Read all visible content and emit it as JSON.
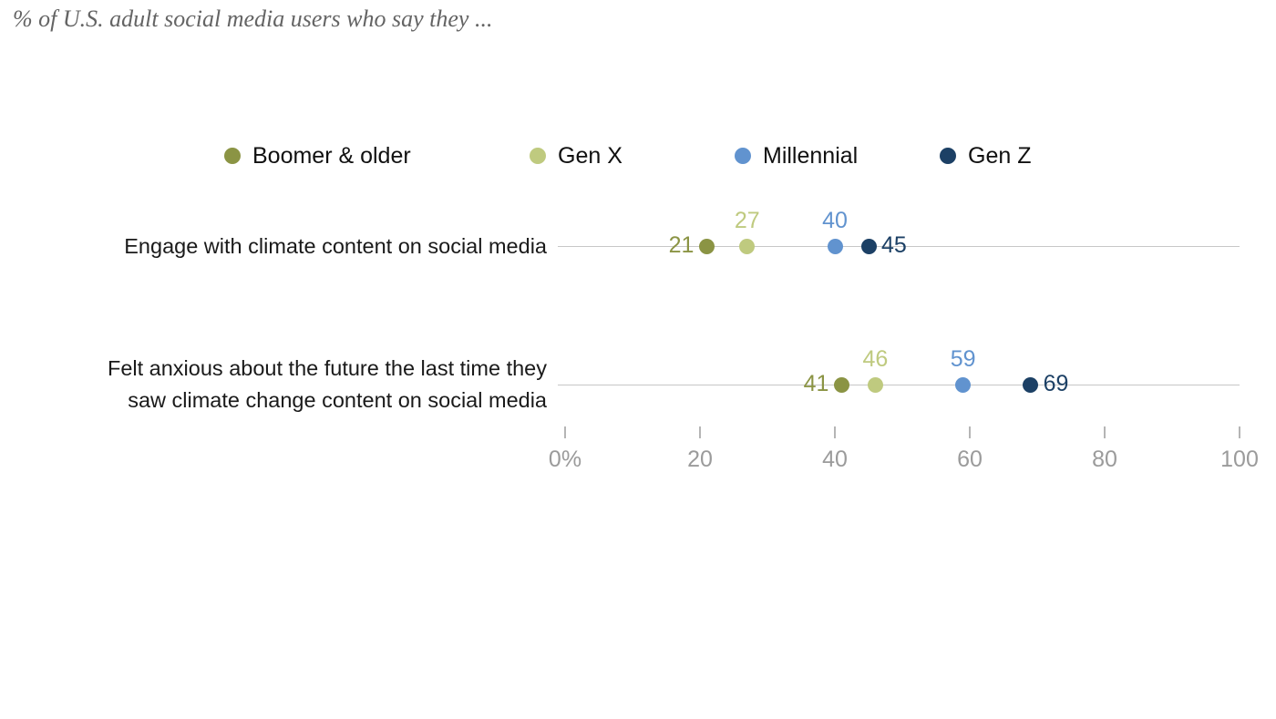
{
  "title": "% of U.S. adult social media users who say they ...",
  "chart_data": {
    "type": "scatter",
    "subtype": "dot-plot",
    "legend_position": "top",
    "grid": false,
    "categories": [
      {
        "lines": [
          "Engage with climate content on social media"
        ]
      },
      {
        "lines": [
          "Felt anxious about the future the last time they",
          "saw climate change content on social media"
        ]
      }
    ],
    "series": [
      {
        "name": "Boomer & older",
        "color": "#8b9444",
        "values": [
          21,
          41
        ],
        "label_position": "left"
      },
      {
        "name": "Gen X",
        "color": "#bfca7f",
        "values": [
          27,
          46
        ],
        "label_position": "above"
      },
      {
        "name": "Millennial",
        "color": "#6193cf",
        "values": [
          40,
          59
        ],
        "label_position": "above"
      },
      {
        "name": "Gen Z",
        "color": "#1c4065",
        "values": [
          45,
          69
        ],
        "label_position": "right"
      }
    ],
    "x_axis": {
      "range": [
        0,
        100
      ],
      "ticks": [
        0,
        20,
        40,
        60,
        80,
        100
      ],
      "tick_labels": [
        "0%",
        "20",
        "40",
        "60",
        "80",
        "100"
      ]
    }
  }
}
